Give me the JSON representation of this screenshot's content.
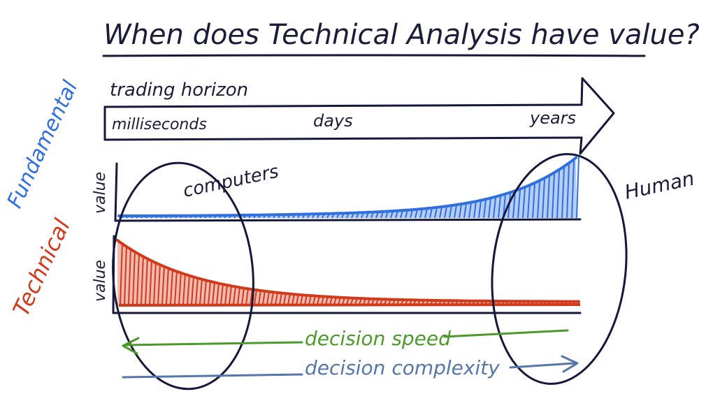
{
  "title": "When does Technical Analysis have value?",
  "horizon": {
    "label": "trading horizon",
    "ticks": [
      "milliseconds",
      "days",
      "years"
    ]
  },
  "fundamental": {
    "side_label": "Fundamental",
    "axis_label": "value",
    "color": "#2f6fe0"
  },
  "technical": {
    "side_label": "Technical",
    "axis_label": "value",
    "color": "#d13a1a"
  },
  "annotations": {
    "computers": "computers",
    "human": "Human"
  },
  "arrows": {
    "decision_speed": {
      "label": "decision speed",
      "color": "#4c9a2a"
    },
    "decision_complexity": {
      "label": "decision complexity",
      "color": "#5576a8"
    }
  },
  "ink_color": "#15183a"
}
